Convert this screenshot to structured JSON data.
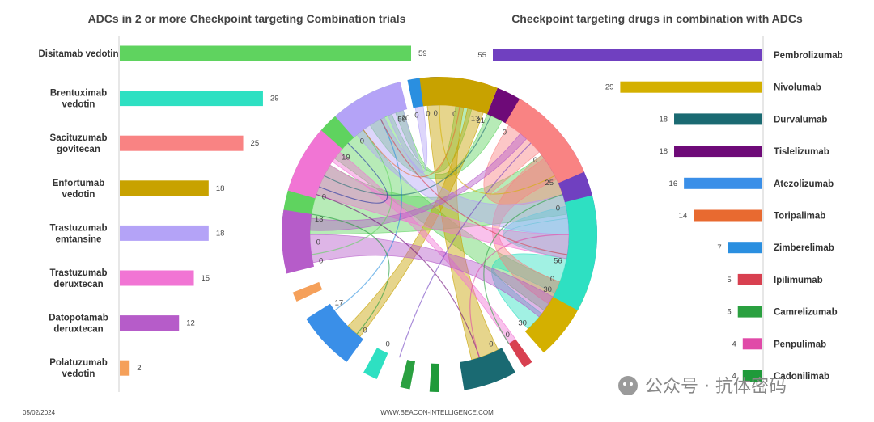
{
  "footer": {
    "date": "05/02/2024",
    "source": "WWW.BEACON-INTELLIGENCE.COM",
    "watermark": "公众号 · 抗体密码"
  },
  "chart_data": [
    {
      "type": "bar",
      "orientation": "horizontal",
      "title": "ADCs in 2 or more Checkpoint targeting Combination trials",
      "categories": [
        [
          "Disitamab vedotin"
        ],
        [
          "Brentuximab",
          "vedotin"
        ],
        [
          "Sacituzumab",
          "govitecan"
        ],
        [
          "Enfortumab",
          "vedotin"
        ],
        [
          "Trastuzumab",
          "emtansine"
        ],
        [
          "Trastuzumab",
          "deruxtecan"
        ],
        [
          "Datopotamab",
          "deruxtecan"
        ],
        [
          "Polatuzumab",
          "vedotin"
        ]
      ],
      "values": [
        59,
        29,
        25,
        18,
        18,
        15,
        12,
        2
      ],
      "colors": [
        "#5fd35f",
        "#2ee0c2",
        "#f98383",
        "#c8a200",
        "#b4a3f7",
        "#f175d4",
        "#b65cc9",
        "#f5a05a"
      ],
      "xlim": [
        0,
        60
      ]
    },
    {
      "type": "bar",
      "orientation": "horizontal",
      "title": "Checkpoint targeting drugs in combination with ADCs",
      "categories": [
        "Pembrolizumab",
        "Nivolumab",
        "Durvalumab",
        "Tislelizumab",
        "Atezolizumab",
        "Toripalimab",
        "Zimberelimab",
        "Ipilimumab",
        "Camrelizumab",
        "Penpulimab",
        "Cadonilimab"
      ],
      "values": [
        55,
        29,
        18,
        18,
        16,
        14,
        7,
        5,
        5,
        4,
        4
      ],
      "colors": [
        "#7040c0",
        "#d4b000",
        "#1a6a72",
        "#6e0a78",
        "#3a8fe8",
        "#e86a30",
        "#2a8fe0",
        "#d84050",
        "#2aa040",
        "#e04aa8",
        "#1f9a3a"
      ],
      "xlim": [
        0,
        60
      ]
    },
    {
      "type": "chord",
      "outer_labels": [
        "0",
        "59",
        "0",
        "0",
        "0",
        "13",
        "0",
        "30",
        "0",
        "25",
        "0",
        "21",
        "0",
        "20",
        "0",
        "19",
        "0",
        "13",
        "0",
        "17",
        "0",
        "56",
        "0",
        "30",
        "0"
      ],
      "arcs": [
        {
          "start": -0.52,
          "end": -0.09,
          "color": "#5fd35f",
          "ticks": [
            {
              "a": -0.52,
              "label": "0"
            },
            {
              "a": -0.1,
              "label": "59"
            }
          ]
        },
        {
          "start": -0.065,
          "end": -0.035,
          "color": "#2a8fe0",
          "ticks": [
            {
              "a": -0.06,
              "label": "0"
            }
          ]
        },
        {
          "start": -0.02,
          "end": 0.0,
          "color": "#1c2fa0",
          "ticks": [
            {
              "a": -0.01,
              "label": "0"
            }
          ]
        },
        {
          "start": 0.03,
          "end": 0.1,
          "color": "#e86a30",
          "ticks": [
            {
              "a": 0.04,
              "label": "0"
            },
            {
              "a": 0.095,
              "label": "13"
            }
          ]
        },
        {
          "start": 0.12,
          "end": 0.19,
          "color": "#6e0a78",
          "ticks": []
        },
        {
          "start": 0.215,
          "end": 0.235,
          "color": "#e04aa8",
          "ticks": []
        },
        {
          "start": 0.27,
          "end": 0.58,
          "color": "#7040c0",
          "ticks": [
            {
              "a": 0.29,
              "label": "0"
            },
            {
              "a": 0.57,
              "label": "56"
            }
          ]
        },
        {
          "start": 0.61,
          "end": 0.77,
          "color": "#d4b000",
          "ticks": [
            {
              "a": 0.62,
              "label": "0"
            },
            {
              "a": 0.76,
              "label": "30"
            }
          ]
        },
        {
          "start": 0.8,
          "end": 0.82,
          "color": "#d84050",
          "ticks": [
            {
              "a": 0.81,
              "label": "0"
            }
          ]
        },
        {
          "start": 0.84,
          "end": 0.95,
          "color": "#1a6a72",
          "ticks": [
            {
              "a": 0.86,
              "label": "0"
            }
          ]
        },
        {
          "start": 1.0,
          "end": 1.02,
          "color": "#1f9a3a",
          "ticks": []
        },
        {
          "start": 1.06,
          "end": 1.08,
          "color": "#2aa040",
          "ticks": []
        },
        {
          "start": 1.13,
          "end": 1.16,
          "color": "#2ee0c2",
          "ticks": [
            {
              "a": 1.14,
              "label": "0"
            }
          ]
        },
        {
          "start": 1.2,
          "end": 1.32,
          "color": "#3a8fe8",
          "ticks": [
            {
              "a": 1.21,
              "label": "0"
            },
            {
              "a": 1.31,
              "label": "17"
            }
          ]
        },
        {
          "start": 1.36,
          "end": 1.38,
          "color": "#f5a05a",
          "ticks": []
        },
        {
          "start": 1.42,
          "end": 1.55,
          "color": "#b65cc9",
          "ticks": [
            {
              "a": 1.43,
              "label": "0"
            },
            {
              "a": 1.54,
              "label": "13"
            }
          ]
        },
        {
          "start": 1.59,
          "end": 1.73,
          "color": "#f175d4",
          "ticks": [
            {
              "a": 1.6,
              "label": "0"
            },
            {
              "a": 1.72,
              "label": "19"
            }
          ]
        },
        {
          "start": 1.77,
          "end": 1.92,
          "color": "#b4a3f7",
          "ticks": [
            {
              "a": 1.78,
              "label": "0"
            },
            {
              "a": 1.91,
              "label": "20"
            }
          ]
        },
        {
          "start": 1.96,
          "end": 2.12,
          "color": "#c8a200",
          "ticks": [
            {
              "a": 1.97,
              "label": "0"
            },
            {
              "a": 2.11,
              "label": "21"
            }
          ]
        },
        {
          "start": 2.17,
          "end": 2.37,
          "color": "#f98383",
          "ticks": [
            {
              "a": 2.18,
              "label": "0"
            },
            {
              "a": 2.36,
              "label": "25"
            }
          ]
        },
        {
          "start": 2.42,
          "end": 2.66,
          "color": "#2ee0c2",
          "ticks": [
            {
              "a": 2.43,
              "label": "0"
            },
            {
              "a": 2.65,
              "label": "30"
            }
          ]
        }
      ],
      "ribbons": [
        {
          "from": [
            -0.5,
            -0.32
          ],
          "to": [
            0.29,
            0.45
          ],
          "color": "#5fd35f"
        },
        {
          "from": [
            -0.3,
            -0.2
          ],
          "to": [
            0.62,
            0.7
          ],
          "color": "#5fd35f"
        },
        {
          "from": [
            -0.18,
            -0.12
          ],
          "to": [
            0.12,
            0.16
          ],
          "color": "#5fd35f"
        },
        {
          "from": [
            -0.11,
            -0.09
          ],
          "to": [
            0.04,
            0.08
          ],
          "color": "#5fd35f"
        },
        {
          "from": [
            2.43,
            2.55
          ],
          "to": [
            0.46,
            0.56
          ],
          "color": "#2ee0c2"
        },
        {
          "from": [
            2.56,
            2.65
          ],
          "to": [
            0.71,
            0.76
          ],
          "color": "#2ee0c2"
        },
        {
          "from": [
            2.18,
            2.28
          ],
          "to": [
            0.3,
            0.4
          ],
          "color": "#f98383"
        },
        {
          "from": [
            2.29,
            2.36
          ],
          "to": [
            0.62,
            0.68
          ],
          "color": "#f98383"
        },
        {
          "from": [
            1.97,
            2.06
          ],
          "to": [
            0.85,
            0.92
          ],
          "color": "#c8a200"
        },
        {
          "from": [
            2.07,
            2.11
          ],
          "to": [
            1.21,
            1.25
          ],
          "color": "#c8a200"
        },
        {
          "from": [
            1.78,
            1.86
          ],
          "to": [
            0.4,
            0.5
          ],
          "color": "#b4a3f7"
        },
        {
          "from": [
            1.87,
            1.91
          ],
          "to": [
            -0.06,
            -0.04
          ],
          "color": "#b4a3f7"
        },
        {
          "from": [
            1.6,
            1.68
          ],
          "to": [
            0.5,
            0.56
          ],
          "color": "#f175d4"
        },
        {
          "from": [
            1.69,
            1.72
          ],
          "to": [
            0.8,
            0.82
          ],
          "color": "#f175d4"
        },
        {
          "from": [
            1.43,
            1.5
          ],
          "to": [
            0.66,
            0.72
          ],
          "color": "#b65cc9"
        },
        {
          "from": [
            1.51,
            1.54
          ],
          "to": [
            0.215,
            0.235
          ],
          "color": "#b65cc9"
        }
      ]
    }
  ]
}
